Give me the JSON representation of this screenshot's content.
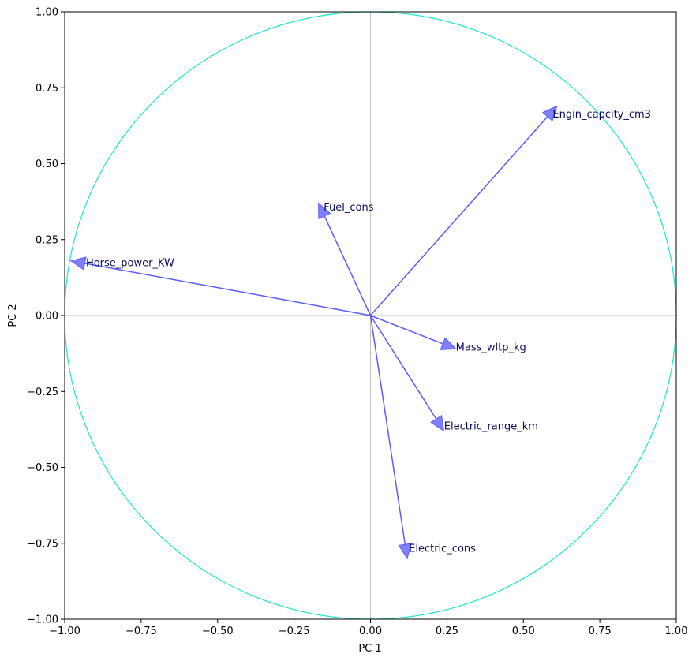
{
  "chart_data": {
    "type": "scatter",
    "subtype": "pca-correlation-circle",
    "title": "",
    "xlabel": "PC 1",
    "ylabel": "PC 2",
    "xlim": [
      -1.0,
      1.0
    ],
    "ylim": [
      -1.0,
      1.0
    ],
    "xticks": [
      "−1.00",
      "−0.75",
      "−0.50",
      "−0.25",
      "0.00",
      "0.25",
      "0.50",
      "0.75",
      "1.00"
    ],
    "yticks": [
      "−1.00",
      "−0.75",
      "−0.50",
      "−0.25",
      "0.00",
      "0.25",
      "0.50",
      "0.75",
      "1.00"
    ],
    "xtick_values": [
      -1.0,
      -0.75,
      -0.5,
      -0.25,
      0.0,
      0.25,
      0.5,
      0.75,
      1.0
    ],
    "ytick_values": [
      -1.0,
      -0.75,
      -0.5,
      -0.25,
      0.0,
      0.25,
      0.5,
      0.75,
      1.0
    ],
    "grid": false,
    "unit_circle": true,
    "vectors": [
      {
        "name": "Engin_capcity_cm3",
        "x": 0.61,
        "y": 0.69
      },
      {
        "name": "Fuel_cons",
        "x": -0.17,
        "y": 0.37
      },
      {
        "name": "Horse_power_KW",
        "x": -0.98,
        "y": 0.18
      },
      {
        "name": "Mass_wltp_kg",
        "x": 0.28,
        "y": -0.11
      },
      {
        "name": "Electric_range_km",
        "x": 0.24,
        "y": -0.38
      },
      {
        "name": "Electric_cons",
        "x": 0.12,
        "y": -0.8
      }
    ],
    "colors": {
      "circle": "#1ee6d0",
      "arrow": "#5a5aff",
      "arrow_head": "#6a6aff",
      "reference_lines": "#bfbfbf",
      "label": "#0a0a5a"
    }
  }
}
